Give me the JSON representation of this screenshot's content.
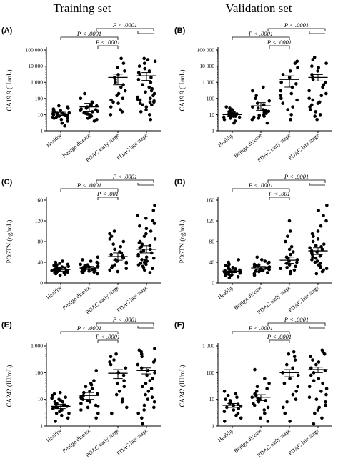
{
  "column_titles": [
    "Training set",
    "Validation set"
  ],
  "chart_data": [
    {
      "type": "scatter",
      "panel": "(A)",
      "ylabel": "CA19.9 (U/mL)",
      "ylog": true,
      "ylim": [
        1,
        100000
      ],
      "yticks": [
        1,
        10,
        100,
        1000,
        10000,
        100000
      ],
      "ytick_labels": [
        "1",
        "10",
        "100",
        "1 000",
        "10 000",
        "100 000"
      ],
      "categories": [
        "Healthy",
        "Benign disease",
        "PDAC early stage",
        "PDAC late stage"
      ],
      "summary": [
        {
          "mean": 11,
          "lo": 9,
          "hi": 14
        },
        {
          "mean": 30,
          "lo": 15,
          "hi": 50
        },
        {
          "mean": 2000,
          "lo": 700,
          "hi": 3200
        },
        {
          "mean": 2500,
          "lo": 1300,
          "hi": 4000
        }
      ],
      "points": [
        [
          2,
          3,
          4,
          5,
          6,
          6,
          7,
          7,
          8,
          8,
          9,
          9,
          10,
          10,
          10,
          11,
          11,
          12,
          12,
          13,
          14,
          15,
          16,
          18,
          20,
          22,
          25,
          30,
          35
        ],
        [
          4,
          5,
          6,
          7,
          8,
          9,
          10,
          11,
          12,
          13,
          15,
          16,
          18,
          20,
          22,
          25,
          30,
          35,
          40,
          60,
          100,
          200
        ],
        [
          10,
          15,
          20,
          30,
          50,
          60,
          80,
          100,
          150,
          200,
          300,
          500,
          700,
          1000,
          1500,
          2000,
          3000,
          5000,
          8000,
          15000,
          30000
        ],
        [
          5,
          10,
          15,
          20,
          30,
          40,
          50,
          60,
          70,
          80,
          100,
          120,
          150,
          200,
          250,
          300,
          400,
          500,
          700,
          1000,
          1500,
          2000,
          3000,
          4000,
          5000,
          7000,
          10000,
          15000,
          20000,
          25000,
          30000,
          40,
          60,
          90
        ]
      ],
      "annotations": [
        {
          "label": "P < .0001",
          "from": 0,
          "to": 2
        },
        {
          "label": "P < .0001",
          "from": 2,
          "to": 2.2
        },
        {
          "label": "P < .0001",
          "from": 1,
          "to": 3
        }
      ]
    },
    {
      "type": "scatter",
      "panel": "(B)",
      "ylabel": "CA19.9 (U/mL)",
      "ylog": true,
      "ylim": [
        1,
        100000
      ],
      "yticks": [
        1,
        10,
        100,
        1000,
        10000,
        100000
      ],
      "ytick_labels": [
        "1",
        "10",
        "100",
        "1 000",
        "10 000",
        "100 000"
      ],
      "categories": [
        "Healthy",
        "Benign disease",
        "PDAC early stage",
        "PDAC late stage"
      ],
      "summary": [
        {
          "mean": 10,
          "lo": 8,
          "hi": 12
        },
        {
          "mean": 35,
          "lo": 18,
          "hi": 55
        },
        {
          "mean": 1500,
          "lo": 500,
          "hi": 2500
        },
        {
          "mean": 2000,
          "lo": 1200,
          "hi": 3000
        }
      ],
      "points": [
        [
          3,
          4,
          5,
          6,
          7,
          7,
          8,
          8,
          9,
          9,
          10,
          10,
          11,
          12,
          13,
          14,
          15,
          17,
          20,
          25,
          30
        ],
        [
          3,
          5,
          6,
          7,
          8,
          9,
          10,
          12,
          14,
          16,
          18,
          20,
          25,
          30,
          40,
          50,
          70,
          100,
          150,
          300,
          500
        ],
        [
          5,
          10,
          20,
          30,
          50,
          80,
          100,
          150,
          200,
          300,
          500,
          800,
          1000,
          2000,
          3000,
          5000,
          8000,
          15000,
          20000
        ],
        [
          5,
          8,
          10,
          15,
          20,
          30,
          40,
          50,
          60,
          80,
          100,
          150,
          200,
          300,
          500,
          700,
          1000,
          1500,
          2000,
          3000,
          5000,
          8000,
          10000,
          15000,
          25000,
          35000
        ]
      ],
      "annotations": [
        {
          "label": "P < .0001",
          "from": 0,
          "to": 2
        },
        {
          "label": "P < .0001",
          "from": 2,
          "to": 2.2
        },
        {
          "label": "P < .0001",
          "from": 1,
          "to": 3
        }
      ]
    },
    {
      "type": "scatter",
      "panel": "(C)",
      "ylabel": "POSTN (ng/mL)",
      "ylog": false,
      "ylim": [
        0,
        160
      ],
      "yticks": [
        0,
        40,
        80,
        120,
        160
      ],
      "ytick_labels": [
        "0",
        "40",
        "80",
        "120",
        "160"
      ],
      "categories": [
        "Healthy",
        "Benign disease",
        "PDAC early stage",
        "PDAC late stage"
      ],
      "summary": [
        {
          "mean": 26,
          "lo": 23,
          "hi": 29
        },
        {
          "mean": 29,
          "lo": 26,
          "hi": 32
        },
        {
          "mean": 51,
          "lo": 44,
          "hi": 58
        },
        {
          "mean": 65,
          "lo": 58,
          "hi": 72
        }
      ],
      "points": [
        [
          15,
          17,
          18,
          19,
          20,
          20,
          21,
          22,
          22,
          23,
          24,
          24,
          25,
          25,
          26,
          26,
          27,
          28,
          28,
          29,
          30,
          31,
          32,
          33,
          34,
          35,
          36,
          38,
          40,
          42
        ],
        [
          18,
          20,
          21,
          22,
          23,
          24,
          25,
          26,
          27,
          27,
          28,
          29,
          30,
          30,
          31,
          32,
          33,
          34,
          35,
          36,
          38,
          40,
          42,
          45,
          50
        ],
        [
          22,
          25,
          28,
          30,
          32,
          35,
          38,
          40,
          42,
          45,
          48,
          50,
          52,
          55,
          58,
          60,
          65,
          70,
          75,
          80,
          85,
          90,
          95,
          100
        ],
        [
          20,
          25,
          28,
          30,
          32,
          35,
          36,
          38,
          40,
          42,
          44,
          45,
          48,
          50,
          52,
          55,
          58,
          60,
          62,
          65,
          68,
          70,
          72,
          75,
          78,
          80,
          85,
          90,
          95,
          100,
          105,
          110,
          115,
          120,
          125,
          130,
          140,
          150
        ]
      ],
      "annotations": [
        {
          "label": "P < .0001",
          "from": 0,
          "to": 2
        },
        {
          "label": "P < .001",
          "from": 1,
          "to": 2
        },
        {
          "label": "P < .0001",
          "from": 1,
          "to": 3
        }
      ]
    },
    {
      "type": "scatter",
      "panel": "(D)",
      "ylabel": "POSTN (ng/mL)",
      "ylog": false,
      "ylim": [
        0,
        160
      ],
      "yticks": [
        0,
        40,
        80,
        120,
        160
      ],
      "ytick_labels": [
        "0",
        "40",
        "80",
        "120",
        "160"
      ],
      "categories": [
        "Healthy",
        "Benign disease",
        "PDAC early stage",
        "PDAC late stage"
      ],
      "summary": [
        {
          "mean": 23,
          "lo": 20,
          "hi": 26
        },
        {
          "mean": 29,
          "lo": 26,
          "hi": 32
        },
        {
          "mean": 44,
          "lo": 38,
          "hi": 50
        },
        {
          "mean": 62,
          "lo": 55,
          "hi": 68
        }
      ],
      "points": [
        [
          10,
          12,
          14,
          15,
          16,
          17,
          18,
          19,
          20,
          21,
          22,
          23,
          24,
          25,
          26,
          27,
          28,
          30,
          32,
          34,
          36,
          40,
          45
        ],
        [
          15,
          18,
          20,
          22,
          23,
          24,
          25,
          26,
          27,
          28,
          29,
          30,
          31,
          32,
          33,
          34,
          35,
          36,
          38,
          40,
          42,
          45,
          50
        ],
        [
          18,
          22,
          25,
          28,
          30,
          32,
          35,
          38,
          40,
          42,
          45,
          48,
          50,
          55,
          60,
          65,
          70,
          80,
          90,
          100,
          120
        ],
        [
          18,
          22,
          25,
          28,
          30,
          32,
          35,
          38,
          40,
          42,
          45,
          48,
          50,
          52,
          55,
          58,
          60,
          62,
          65,
          68,
          70,
          72,
          75,
          80,
          85,
          90,
          95,
          100,
          110,
          120,
          130,
          140,
          150
        ]
      ],
      "annotations": [
        {
          "label": "P < .0001",
          "from": 0,
          "to": 2
        },
        {
          "label": "P < .001",
          "from": 1,
          "to": 2
        },
        {
          "label": "P < .0001",
          "from": 1,
          "to": 3
        }
      ]
    },
    {
      "type": "scatter",
      "panel": "(E)",
      "ylabel": "CA242 (IU/mL)",
      "ylog": true,
      "ylim": [
        1,
        1000
      ],
      "yticks": [
        1,
        10,
        100,
        1000
      ],
      "ytick_labels": [
        "1",
        "10",
        "100",
        "1 000"
      ],
      "categories": [
        "Healthy",
        "Benign disease",
        "PDAC early stage",
        "PDAC late stage"
      ],
      "summary": [
        {
          "mean": 5.5,
          "lo": 4.5,
          "hi": 6.5
        },
        {
          "mean": 14,
          "lo": 10,
          "hi": 18
        },
        {
          "mean": 95,
          "lo": 60,
          "hi": 130
        },
        {
          "mean": 120,
          "lo": 90,
          "hi": 150
        }
      ],
      "points": [
        [
          1.5,
          2,
          2.5,
          3,
          3,
          3.5,
          4,
          4,
          4.5,
          5,
          5,
          5.5,
          6,
          6,
          6.5,
          7,
          7,
          8,
          8,
          9,
          10,
          11,
          12,
          14,
          16,
          18
        ],
        [
          2,
          3,
          4,
          5,
          5.5,
          6,
          7,
          8,
          9,
          10,
          11,
          12,
          14,
          16,
          18,
          20,
          25,
          30,
          35,
          40,
          50,
          120
        ],
        [
          3,
          5,
          8,
          10,
          15,
          20,
          30,
          40,
          50,
          80,
          100,
          150,
          200,
          250,
          300,
          400,
          500
        ],
        [
          1.2,
          2,
          3,
          4,
          5,
          6,
          8,
          10,
          12,
          15,
          20,
          25,
          30,
          40,
          50,
          60,
          80,
          100,
          120,
          150,
          200,
          250,
          300,
          400,
          500,
          600,
          700,
          800
        ]
      ],
      "annotations": [
        {
          "label": "P < .0001",
          "from": 0,
          "to": 2
        },
        {
          "label": "P < .0001",
          "from": 1,
          "to": 2
        },
        {
          "label": "P < .0001",
          "from": 1,
          "to": 3
        }
      ]
    },
    {
      "type": "scatter",
      "panel": "(F)",
      "ylabel": "CA242 (IU/mL)",
      "ylog": true,
      "ylim": [
        1,
        1000
      ],
      "yticks": [
        1,
        10,
        100,
        1000
      ],
      "ytick_labels": [
        "1",
        "10",
        "100",
        "1 000"
      ],
      "categories": [
        "Healthy",
        "Benign disease",
        "PDAC early stage",
        "PDAC late stage"
      ],
      "summary": [
        {
          "mean": 6,
          "lo": 5,
          "hi": 7
        },
        {
          "mean": 12,
          "lo": 9,
          "hi": 15
        },
        {
          "mean": 100,
          "lo": 70,
          "hi": 130
        },
        {
          "mean": 130,
          "lo": 100,
          "hi": 160
        }
      ],
      "points": [
        [
          1.5,
          2,
          2.5,
          3,
          3.5,
          4,
          4.5,
          5,
          5.5,
          6,
          6.5,
          7,
          8,
          9,
          10,
          12,
          14,
          16,
          20
        ],
        [
          1.5,
          2,
          3,
          4,
          5,
          6,
          7,
          8,
          9,
          10,
          11,
          12,
          14,
          16,
          20,
          25,
          30,
          40,
          60,
          130
        ],
        [
          1.5,
          3,
          5,
          8,
          10,
          15,
          20,
          30,
          40,
          60,
          80,
          100,
          150,
          200,
          300,
          400,
          500,
          600
        ],
        [
          1.2,
          2,
          3,
          4,
          5,
          6,
          8,
          10,
          12,
          15,
          20,
          25,
          30,
          40,
          50,
          60,
          80,
          100,
          120,
          150,
          200,
          250,
          300,
          400,
          500,
          600,
          700
        ]
      ],
      "annotations": [
        {
          "label": "P < .0001",
          "from": 0,
          "to": 2
        },
        {
          "label": "P < .0001",
          "from": 1,
          "to": 2
        },
        {
          "label": "P < .0001",
          "from": 1,
          "to": 3
        }
      ]
    }
  ]
}
